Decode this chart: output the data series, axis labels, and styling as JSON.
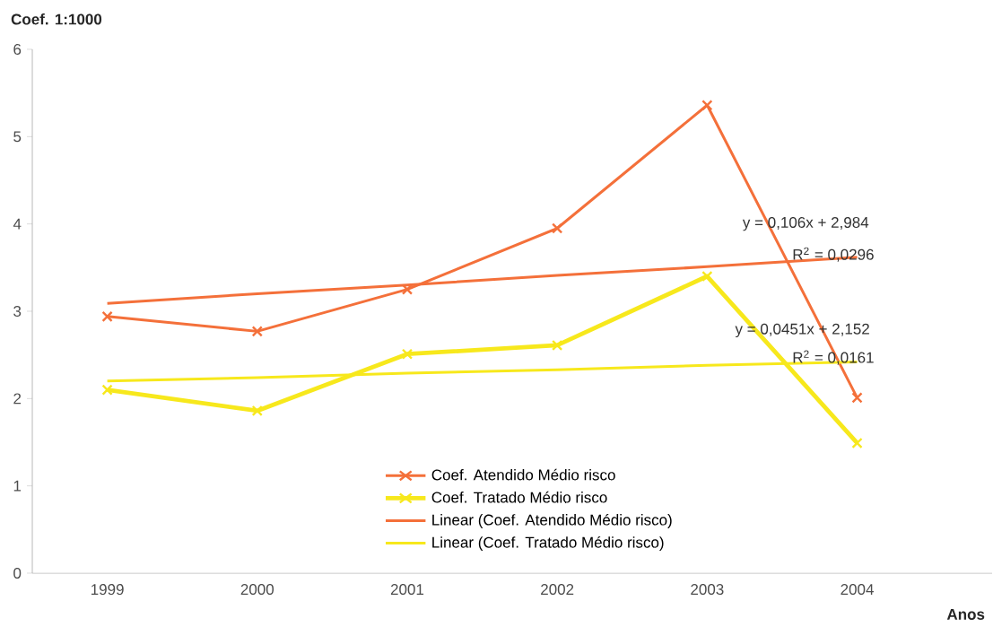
{
  "chart_data": {
    "type": "line",
    "xlabel": "Anos",
    "ylabel": "Coef. 1:1000",
    "categories": [
      "1999",
      "2000",
      "2001",
      "2002",
      "2003",
      "2004"
    ],
    "series": [
      {
        "name": "Coef. Atendido Médio risco",
        "color": "#f4703a",
        "marker": "cross",
        "values": [
          2.94,
          2.77,
          3.25,
          3.95,
          5.36,
          2.01
        ]
      },
      {
        "name": "Coef. Tratado Médio risco",
        "color": "#f7e81c",
        "marker": "cross",
        "values": [
          2.1,
          1.86,
          2.51,
          2.61,
          3.4,
          1.49
        ]
      },
      {
        "name": "Linear (Coef. Atendido Médio risco)",
        "color": "#f4703a",
        "marker": "none",
        "values": [
          3.09,
          3.2,
          3.3,
          3.41,
          3.51,
          3.62
        ]
      },
      {
        "name": "Linear (Coef. Tratado Médio risco)",
        "color": "#f7e81c",
        "marker": "none",
        "values": [
          2.2,
          2.24,
          2.29,
          2.33,
          2.38,
          2.42
        ]
      }
    ],
    "annotations": [
      "y = 0,106x + 2,984",
      "R$^{2}$ = 0,0296",
      "y = 0,0451x + 2,152",
      "R$^{2}$ = 0,0161"
    ],
    "ylim": [
      0,
      6
    ],
    "yticks": [
      0,
      1,
      2,
      3,
      4,
      5,
      6
    ],
    "legend": "bottom",
    "grid": false
  }
}
